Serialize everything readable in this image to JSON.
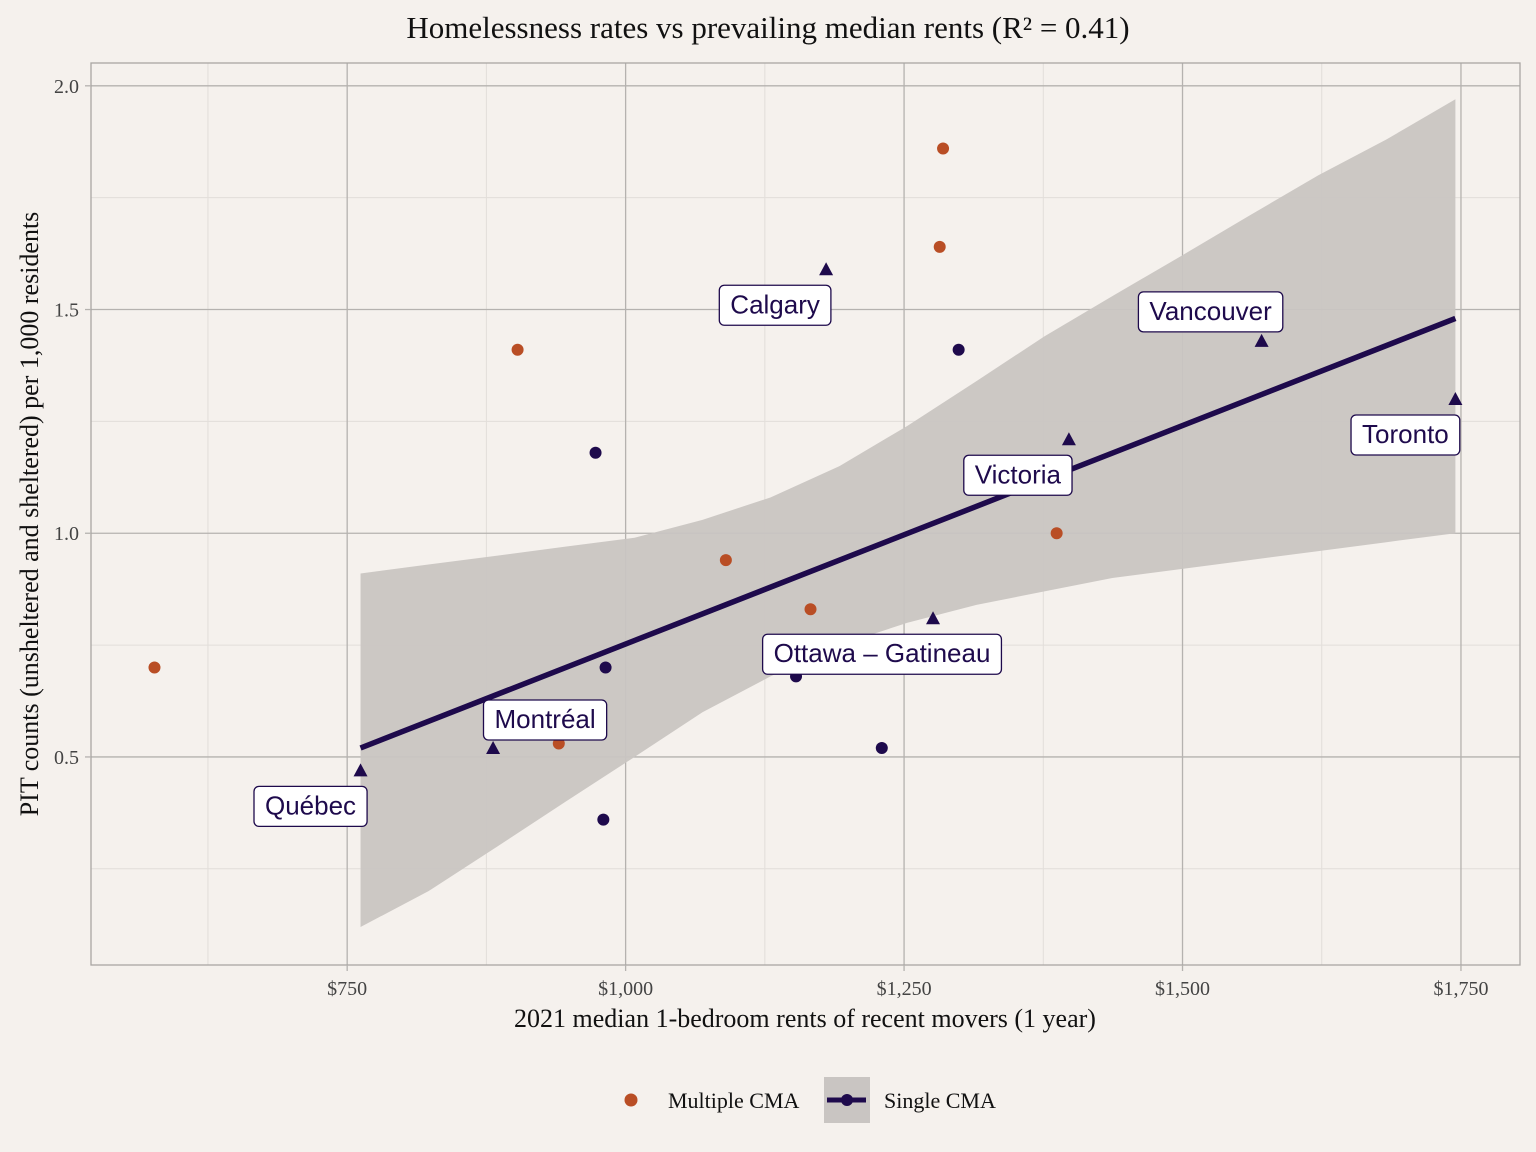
{
  "chart_data": {
    "type": "scatter",
    "title": "Homelessness rates vs prevailing median rents (R² = 0.41)",
    "xlabel": "2021 median 1-bedroom rents of recent movers (1 year)",
    "ylabel": "PIT counts (unsheltered and sheltered) per 1,000 residents",
    "xlim": [
      520,
      1803
    ],
    "ylim": [
      0.035,
      2.051
    ],
    "x_ticks": [
      750,
      1000,
      1250,
      1500,
      1750
    ],
    "x_tick_labels": [
      "$750",
      "$1,000",
      "$1,250",
      "$1,500",
      "$1,750"
    ],
    "x_minor_ticks": [
      625,
      875,
      1125,
      1375,
      1625
    ],
    "y_ticks": [
      0.5,
      1.0,
      1.5,
      2.0
    ],
    "y_tick_labels": [
      "0.5",
      "1.0",
      "1.5",
      "2.0"
    ],
    "y_minor_ticks": [
      0.25,
      0.75,
      1.25,
      1.75
    ],
    "grid": true,
    "legend_position": "bottom",
    "colors": {
      "multiple": "#b94e25",
      "single": "#1e0a4c",
      "ribbon": "#c9c5c2",
      "background": "#f5f1ed",
      "grid_major": "#b5b2af",
      "grid_minor": "#e2deda"
    },
    "series": [
      {
        "name": "Multiple CMA",
        "marker": "circle",
        "points": [
          {
            "x": 577,
            "y": 0.7
          },
          {
            "x": 903,
            "y": 1.41
          },
          {
            "x": 940,
            "y": 0.53
          },
          {
            "x": 1090,
            "y": 0.94
          },
          {
            "x": 1166,
            "y": 0.83
          },
          {
            "x": 1282,
            "y": 1.64
          },
          {
            "x": 1285,
            "y": 1.86
          },
          {
            "x": 1387,
            "y": 1.0
          }
        ]
      },
      {
        "name": "Single CMA",
        "marker": "circle",
        "points": [
          {
            "x": 973,
            "y": 1.18
          },
          {
            "x": 982,
            "y": 0.7
          },
          {
            "x": 980,
            "y": 0.36
          },
          {
            "x": 1153,
            "y": 0.68
          },
          {
            "x": 1230,
            "y": 0.52
          },
          {
            "x": 1299,
            "y": 1.41
          }
        ]
      },
      {
        "name": "Single CMA (labeled)",
        "marker": "triangle",
        "points": [
          {
            "x": 762,
            "y": 0.47,
            "label": "Québec"
          },
          {
            "x": 881,
            "y": 0.52,
            "label": "Montréal"
          },
          {
            "x": 1180,
            "y": 1.59,
            "label": "Calgary"
          },
          {
            "x": 1276,
            "y": 0.81,
            "label": "Ottawa – Gatineau"
          },
          {
            "x": 1398,
            "y": 1.21,
            "label": "Victoria"
          },
          {
            "x": 1571,
            "y": 1.43,
            "label": "Vancouver"
          },
          {
            "x": 1745,
            "y": 1.3,
            "label": "Toronto"
          }
        ]
      }
    ],
    "fit": {
      "name": "Single CMA linear fit",
      "x": [
        762,
        1745
      ],
      "y": [
        0.52,
        1.48
      ],
      "ci_lower": [
        0.12,
        0.2,
        0.3,
        0.4,
        0.5,
        0.6,
        0.68,
        0.75,
        0.8,
        0.84,
        0.87,
        0.9,
        0.92,
        0.94,
        0.96,
        0.98,
        1.0
      ],
      "ci_upper": [
        0.91,
        0.93,
        0.95,
        0.97,
        0.99,
        1.03,
        1.08,
        1.15,
        1.24,
        1.34,
        1.44,
        1.53,
        1.62,
        1.71,
        1.8,
        1.88,
        1.97
      ],
      "ci_x": [
        762,
        823,
        885,
        946,
        1008,
        1069,
        1130,
        1192,
        1253,
        1315,
        1376,
        1437,
        1499,
        1560,
        1622,
        1683,
        1745
      ]
    },
    "legend": [
      {
        "label": "Multiple CMA",
        "key": "multiple"
      },
      {
        "label": "Single CMA",
        "key": "single"
      }
    ]
  }
}
